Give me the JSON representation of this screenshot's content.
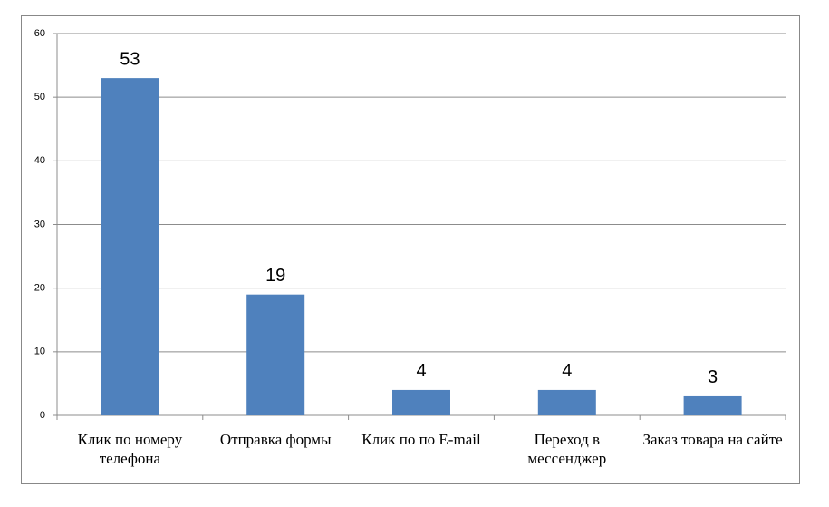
{
  "chart_data": {
    "type": "bar",
    "categories": [
      "Клик по номеру телефона",
      "Отправка формы",
      "Клик по по E-mail",
      "Переход в мессенджер",
      "Заказ товара на сайте"
    ],
    "values": [
      53,
      19,
      4,
      4,
      3
    ],
    "color": "#4f81bd",
    "ylim": [
      0,
      60
    ],
    "yticks": [
      0,
      10,
      20,
      30,
      40,
      50,
      60
    ],
    "grid": true
  }
}
